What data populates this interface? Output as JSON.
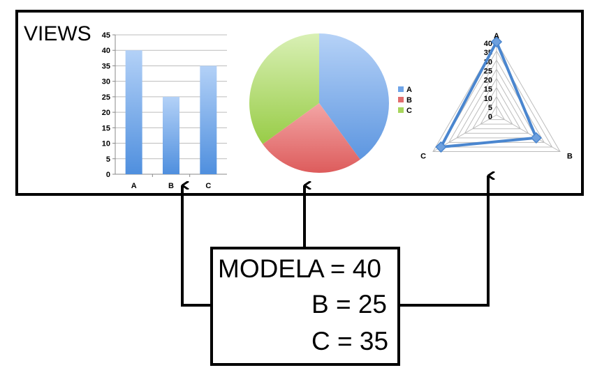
{
  "views": {
    "title": "VIEWS"
  },
  "model": {
    "title": "MODEL",
    "lines": [
      "A = 40",
      "B = 25",
      "C = 35"
    ]
  },
  "colors": {
    "bar_top": "#b3d1f7",
    "bar_bottom": "#4f8fde",
    "slice_a": "#6fa4e8",
    "slice_b": "#e26d6d",
    "slice_c": "#a8d65c",
    "radar_line": "#4a86cf",
    "grid": "#bcbcbc"
  },
  "chart_data": [
    {
      "type": "bar",
      "categories": [
        "A",
        "B",
        "C"
      ],
      "values": [
        40,
        25,
        35
      ],
      "ylim": [
        0,
        45
      ],
      "yticks": [
        0,
        5,
        10,
        15,
        20,
        25,
        30,
        35,
        40,
        45
      ],
      "grid": true
    },
    {
      "type": "pie",
      "labels": [
        "A",
        "B",
        "C"
      ],
      "values": [
        40,
        25,
        35
      ],
      "legend": "right"
    },
    {
      "type": "radar",
      "axes": [
        "A",
        "B",
        "C"
      ],
      "values": [
        40,
        25,
        35
      ],
      "rlim": [
        0,
        40
      ],
      "rticks": [
        0,
        5,
        10,
        15,
        20,
        25,
        30,
        35,
        40
      ]
    }
  ]
}
